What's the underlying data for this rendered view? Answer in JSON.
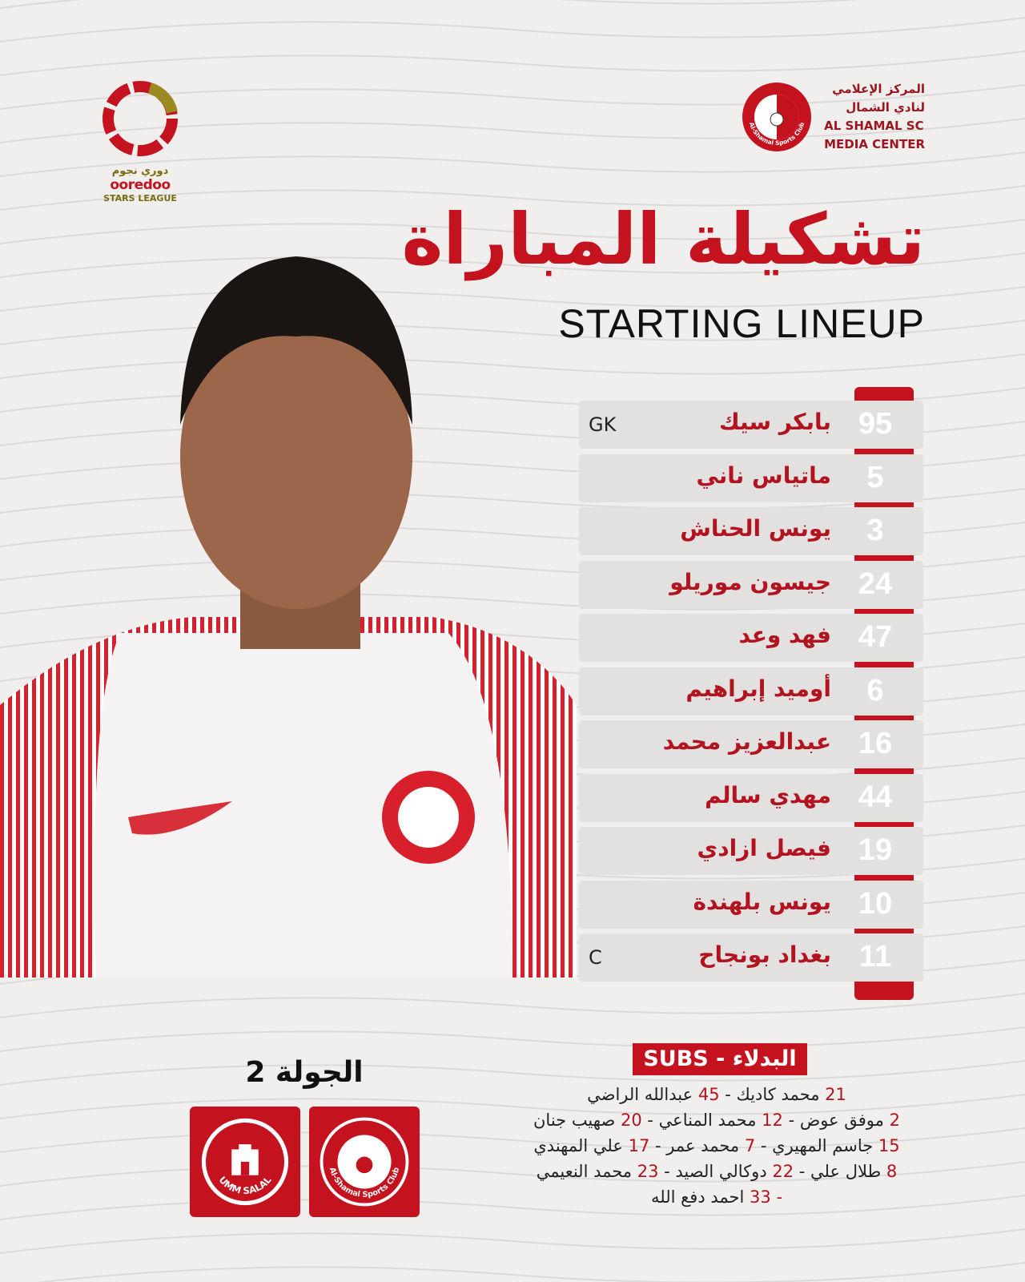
{
  "league": {
    "name_ar": "دوري نجوم",
    "brand": "ooredoo",
    "name_en": "STARS LEAGUE"
  },
  "club": {
    "line1": "المركز الإعلامي",
    "line2": "لنادي الشمال",
    "line3": "AL SHAMAL SC",
    "line4": "MEDIA CENTER",
    "badge_text": "Al-Shamal Sports Club"
  },
  "title": {
    "ar": "تشكيلة المباراة",
    "en": "STARTING LINEUP"
  },
  "colors": {
    "accent": "#c4121f",
    "background": "#f1efee",
    "row": "#e3e1e0"
  },
  "lineup": [
    {
      "number": "95",
      "name": "بابكر سيك",
      "tag": "GK"
    },
    {
      "number": "5",
      "name": "ماتياس ناني",
      "tag": ""
    },
    {
      "number": "3",
      "name": "يونس الحناش",
      "tag": ""
    },
    {
      "number": "24",
      "name": "جيسون موريلو",
      "tag": ""
    },
    {
      "number": "47",
      "name": "فهد وعد",
      "tag": ""
    },
    {
      "number": "6",
      "name": "أوميد إبراهيم",
      "tag": ""
    },
    {
      "number": "16",
      "name": "عبدالعزيز محمد",
      "tag": ""
    },
    {
      "number": "44",
      "name": "مهدي سالم",
      "tag": ""
    },
    {
      "number": "19",
      "name": "فيصل ازادي",
      "tag": ""
    },
    {
      "number": "10",
      "name": "يونس بلهندة",
      "tag": ""
    },
    {
      "number": "11",
      "name": "بغداد بونجاح",
      "tag": "C"
    }
  ],
  "subs": {
    "label": "البدلاء - SUBS",
    "lines": [
      [
        {
          "n": "21",
          "p": "محمد كاديك -"
        },
        {
          "n": "45",
          "p": "عبدالله الراضي"
        }
      ],
      [
        {
          "n": "2",
          "p": "موفق عوض -"
        },
        {
          "n": "12",
          "p": "محمد المناعي -"
        },
        {
          "n": "20",
          "p": "صهيب جنان"
        }
      ],
      [
        {
          "n": "15",
          "p": "جاسم المهيري -"
        },
        {
          "n": "7",
          "p": "محمد عمر -"
        },
        {
          "n": "17",
          "p": "علي المهندي"
        }
      ],
      [
        {
          "n": "8",
          "p": "طلال علي -"
        },
        {
          "n": "22",
          "p": "دوكالي الصيد -"
        },
        {
          "n": "23",
          "p": "محمد النعيمي"
        }
      ],
      [
        {
          "n": "-",
          "p": ""
        },
        {
          "n": "33",
          "p": "احمد دفع الله"
        }
      ]
    ]
  },
  "match": {
    "round": "الجولة 2",
    "home": "Al-Shamal Sports Club",
    "away": "UMM SALAL"
  }
}
